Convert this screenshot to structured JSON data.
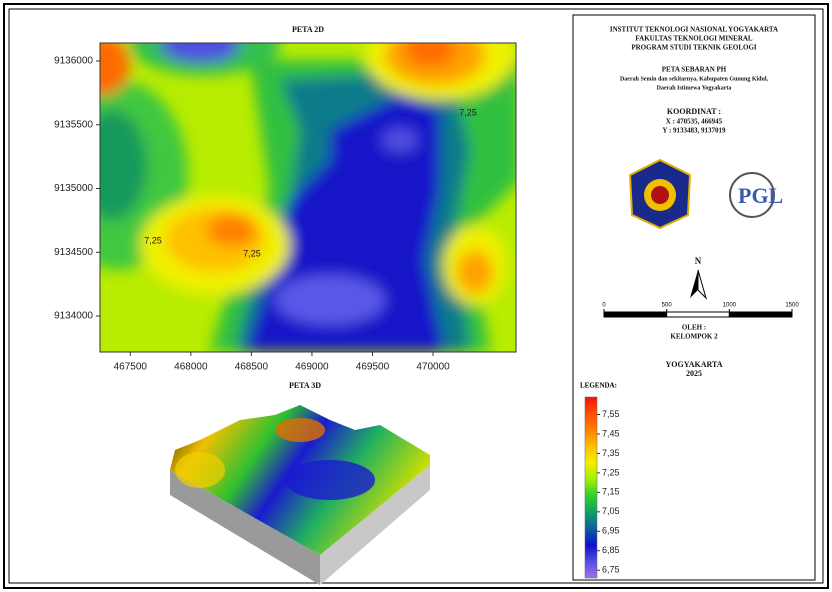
{
  "header": {
    "lines": [
      "INSTITUT TEKNOLOGI NASIONAL YOGYAKARTA",
      "FAKULTAS TEKNOLOGI MINERAL",
      "PROGRAM STUDI TEKNIK GEOLOGI"
    ]
  },
  "map_title": {
    "title": "PETA SEBARAN PH",
    "lines": [
      "Daerah Semin dan sekitarnya, Kabupaten Gunung Kidul,",
      "Daerah Istimewa Yogyakarta"
    ]
  },
  "coordinates": {
    "title": "KOORDINAT :",
    "x": "X : 470535, 466945",
    "y": "Y : 9133483, 9137019"
  },
  "logo_text": "PGL",
  "north": "N",
  "scale_bar": {
    "lim": [
      0,
      1500
    ],
    "ticks": [
      0,
      500,
      1000,
      1500
    ]
  },
  "author": {
    "title": "OLEH :",
    "name": "KELOMPOK 2"
  },
  "place": "YOGYAKARTA",
  "year": "2025",
  "map2d": {
    "title": "PETA 2D",
    "xlim": [
      467250,
      470685
    ],
    "ylim": [
      9133718,
      9136141
    ],
    "xticks": [
      467500,
      468000,
      468500,
      469000,
      469500,
      470000
    ],
    "yticks": [
      9134000,
      9134500,
      9135000,
      9135500,
      9136000
    ],
    "contour_labels": [
      {
        "value": 7.25,
        "label": "7,25"
      },
      {
        "value": 7.25,
        "label": "7,25"
      },
      {
        "value": 7.25,
        "label": "7,25"
      }
    ]
  },
  "map3d": {
    "title": "PETA 3D"
  },
  "legend": {
    "title": "LEGENDA:",
    "lim": [
      6.71,
      7.64
    ],
    "colors": [
      "#a070f0",
      "#5050e0",
      "#1010c8",
      "#0a60a0",
      "#10a060",
      "#30d030",
      "#a0f000",
      "#f0f000",
      "#ffc000",
      "#ff8000",
      "#ff5000",
      "#f01010"
    ],
    "ticks": [
      {
        "value": 7.55,
        "label": "7,55"
      },
      {
        "value": 7.45,
        "label": "7,45"
      },
      {
        "value": 7.35,
        "label": "7,35"
      },
      {
        "value": 7.25,
        "label": "7,25"
      },
      {
        "value": 7.15,
        "label": "7,15"
      },
      {
        "value": 7.05,
        "label": "7,05"
      },
      {
        "value": 6.95,
        "label": "6,95"
      },
      {
        "value": 6.85,
        "label": "6,85"
      },
      {
        "value": 6.75,
        "label": "6,75"
      }
    ]
  }
}
